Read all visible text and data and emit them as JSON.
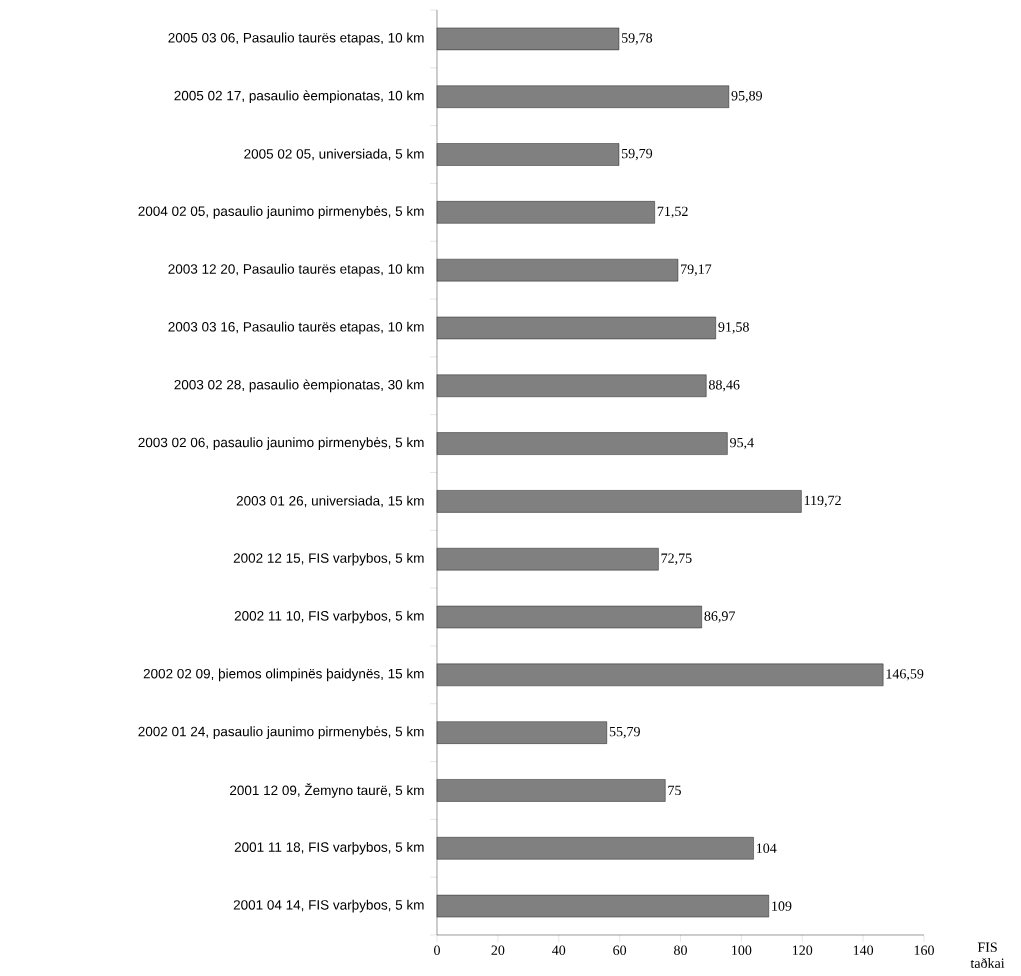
{
  "chart_data": {
    "type": "bar",
    "orientation": "horizontal",
    "categories": [
      "2005 03 06, Pasaulio taurës etapas, 10 km",
      "2005 02 17, pasaulio èempionatas, 10 km",
      "2005 02 05, universiada, 5 km",
      "2004 02 05, pasaulio jaunimo pirmenybės, 5 km",
      "2003 12 20, Pasaulio taurës etapas, 10 km",
      "2003 03 16, Pasaulio taurës etapas, 10 km",
      "2003 02 28, pasaulio èempionatas, 30 km",
      "2003 02 06, pasaulio jaunimo pirmenybės, 5 km",
      "2003 01 26, universiada, 15 km",
      "2002 12 15, FIS varþybos, 5 km",
      "2002 11 10, FIS varþybos, 5 km",
      "2002 02 09, þiemos olimpinës þaidynës, 15 km",
      "2002 01 24, pasaulio jaunimo pirmenybės, 5 km",
      "2001 12 09, Žemyno taurë, 5 km",
      "2001 11 18, FIS varþybos, 5 km",
      "2001 04 14, FIS varþybos, 5 km"
    ],
    "values": [
      59.78,
      95.89,
      59.79,
      71.52,
      79.17,
      91.58,
      88.46,
      95.4,
      119.72,
      72.75,
      86.97,
      146.59,
      55.79,
      75,
      104,
      109
    ],
    "value_labels": [
      "59,78",
      "95,89",
      "59,79",
      "71,52",
      "79,17",
      "91,58",
      "88,46",
      "95,4",
      "119,72",
      "72,75",
      "86,97",
      "146,59",
      "55,79",
      "75",
      "104",
      "109"
    ],
    "color": "#808080",
    "xlim": [
      0,
      160
    ],
    "xticks": [
      0,
      20,
      40,
      60,
      80,
      100,
      120,
      140,
      160
    ],
    "xlabel": "FIS taðkai"
  }
}
